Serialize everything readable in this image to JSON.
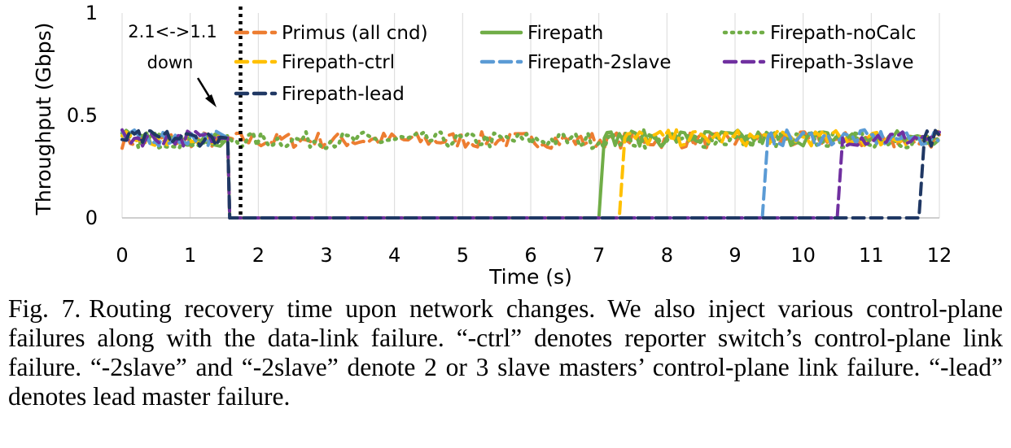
{
  "chart_data": {
    "type": "line",
    "title": "",
    "xlabel": "Time (s)",
    "ylabel": "Throughput (Gbps)",
    "xlim": [
      0,
      12
    ],
    "ylim": [
      0,
      1
    ],
    "x_ticks": [
      "0",
      "1",
      "2",
      "3",
      "4",
      "5",
      "6",
      "7",
      "8",
      "9",
      "10",
      "11",
      "12"
    ],
    "y_ticks": [
      "0",
      "0.5",
      "1"
    ],
    "grid": "vertical gridlines at each second",
    "legend": "top, three columns",
    "annotation": {
      "line1": "2.1<->1.1",
      "line2": "down",
      "event_time": 1.5
    },
    "series": [
      {
        "name": "Primus (all cnd)",
        "color": "#ED7D31",
        "style": "dash",
        "failure_time": null,
        "recovery_time": null,
        "level": 0.38
      },
      {
        "name": "Firepath",
        "color": "#70AD47",
        "style": "solid",
        "failure_time": 1.5,
        "recovery_time": 7.0,
        "level": 0.39
      },
      {
        "name": "Firepath-noCalc",
        "color": "#70AD47",
        "style": "dot",
        "failure_time": null,
        "recovery_time": null,
        "level": 0.38
      },
      {
        "name": "Firepath-ctrl",
        "color": "#FFC000",
        "style": "dash",
        "failure_time": 1.5,
        "recovery_time": 7.3,
        "level": 0.39
      },
      {
        "name": "Firepath-2slave",
        "color": "#5B9BD5",
        "style": "dash",
        "failure_time": 1.5,
        "recovery_time": 9.4,
        "level": 0.39
      },
      {
        "name": "Firepath-3slave",
        "color": "#7030A0",
        "style": "dash",
        "failure_time": 1.5,
        "recovery_time": 10.5,
        "level": 0.39
      },
      {
        "name": "Firepath-lead",
        "color": "#203864",
        "style": "dash",
        "failure_time": 1.5,
        "recovery_time": 11.7,
        "level": 0.39
      }
    ]
  },
  "caption": {
    "label": "Fig. 7.",
    "text": "Routing recovery time upon network changes. We also inject various control-plane failures along with the data-link failure. “-ctrl” denotes reporter switch’s control-plane link failure. “-2slave” and “-2slave” denote 2 or 3 slave masters’ control-plane link failure. “-lead” denotes lead master failure."
  }
}
